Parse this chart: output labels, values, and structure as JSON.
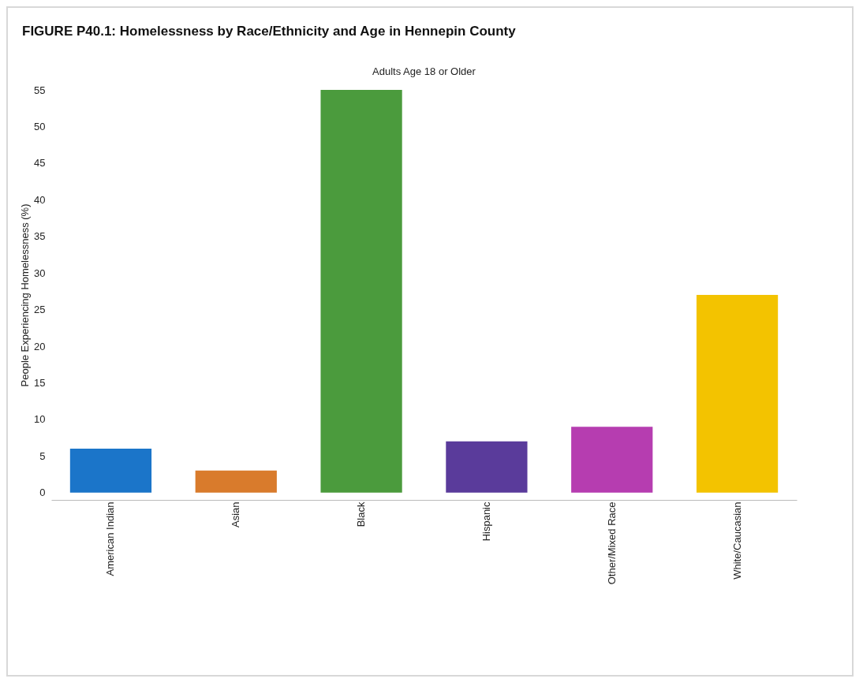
{
  "chart_data": {
    "type": "bar",
    "title": "FIGURE P40.1: Homelessness by Race/Ethnicity and Age in Hennepin County",
    "subtitle": "Adults Age 18 or Older",
    "ylabel": "People Experiencing Homelessness (%)",
    "categories": [
      "American Indian",
      "Asian",
      "Black",
      "Hispanic",
      "Other/Mixed Race",
      "White/Caucasian"
    ],
    "values": [
      6,
      3,
      55,
      7,
      9,
      27
    ],
    "colors": [
      "#1b75c9",
      "#d97b2c",
      "#4b9b3d",
      "#5a3b9b",
      "#b63db0",
      "#f3c300"
    ],
    "ylim": [
      -1,
      55
    ],
    "yticks": [
      0,
      5,
      10,
      15,
      20,
      25,
      30,
      35,
      40,
      45,
      50,
      55
    ],
    "grid": false,
    "legend": false
  }
}
